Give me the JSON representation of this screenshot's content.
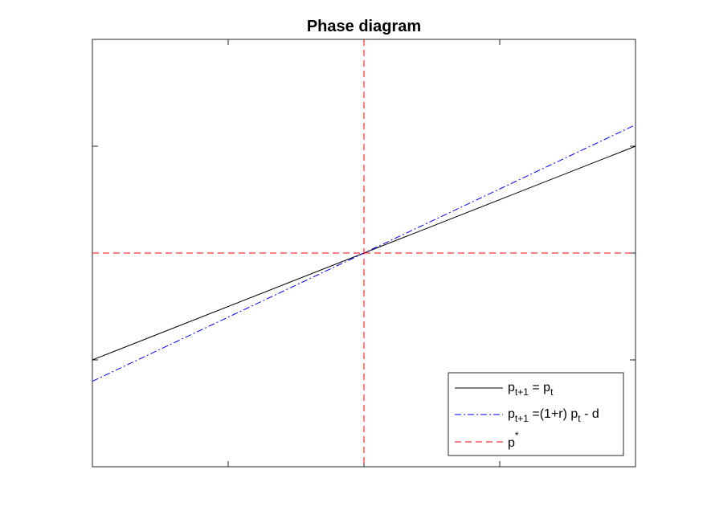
{
  "chart_data": {
    "type": "line",
    "title": "Phase diagram",
    "xlabel": "",
    "ylabel": "",
    "xlim": [
      0,
      4
    ],
    "ylim": [
      0,
      4
    ],
    "x_ticks": [
      1,
      2,
      3
    ],
    "y_ticks": [
      1,
      2,
      3
    ],
    "tick_labels_shown": false,
    "grid": false,
    "legend_position": "bottom-right",
    "series": [
      {
        "key": "identity",
        "style": "solid",
        "color": "#000000",
        "x": [
          0,
          4
        ],
        "y": [
          1,
          3
        ]
      },
      {
        "key": "dynamics",
        "style": "dashdot",
        "color": "#0000ff",
        "x": [
          0,
          4
        ],
        "y": [
          0.8,
          3.2
        ]
      },
      {
        "key": "steady_state",
        "style": "dashed",
        "color": "#ff0000",
        "vertical_x": 2,
        "horizontal_y": 2
      }
    ],
    "legend": [
      {
        "key": "identity",
        "main": "p",
        "sub": "t+1",
        "mid": " = p",
        "sub2": "t",
        "tail": ""
      },
      {
        "key": "dynamics",
        "main": "p",
        "sub": "t+1",
        "mid": " =(1+r) p",
        "sub2": "t",
        "tail": " - d"
      },
      {
        "key": "steady_state",
        "main": "p",
        "sup": "*"
      }
    ]
  }
}
